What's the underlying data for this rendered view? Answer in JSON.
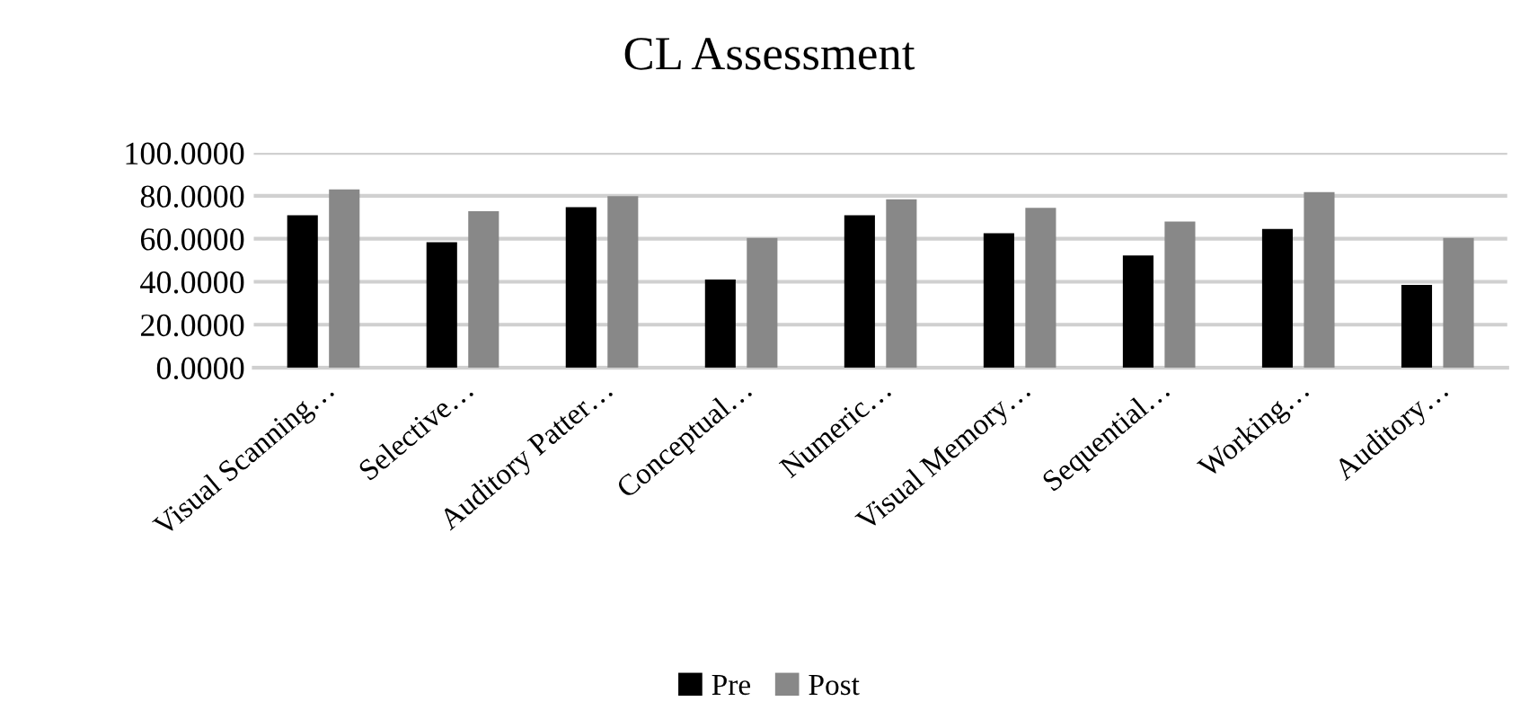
{
  "chart_data": {
    "type": "bar",
    "title": "CL Assessment",
    "categories": [
      "Visual Scanning…",
      "Selective…",
      "Auditory Patter…",
      "Conceptual…",
      "Numeric…",
      "Visual Memory…",
      "Sequential…",
      "Working…",
      "Auditory…"
    ],
    "series": [
      {
        "name": "Pre",
        "color": "#000000",
        "values": [
          71,
          58.4,
          74.7,
          41,
          71,
          62.6,
          52.2,
          64.6,
          38.5
        ]
      },
      {
        "name": "Post",
        "color": "#888888",
        "values": [
          83,
          72.8,
          79.8,
          60.4,
          78.4,
          74.4,
          68,
          81.7,
          60.4
        ]
      }
    ],
    "ylim": [
      0,
      100
    ],
    "yticks": [
      {
        "value": 0,
        "label": "0.0000"
      },
      {
        "value": 20,
        "label": "20.0000"
      },
      {
        "value": 40,
        "label": "40.0000"
      },
      {
        "value": 60,
        "label": "60.0000"
      },
      {
        "value": 80,
        "label": "80.0000"
      },
      {
        "value": 100,
        "label": "100.0000"
      }
    ],
    "grid": "y",
    "legend": "bottom"
  }
}
